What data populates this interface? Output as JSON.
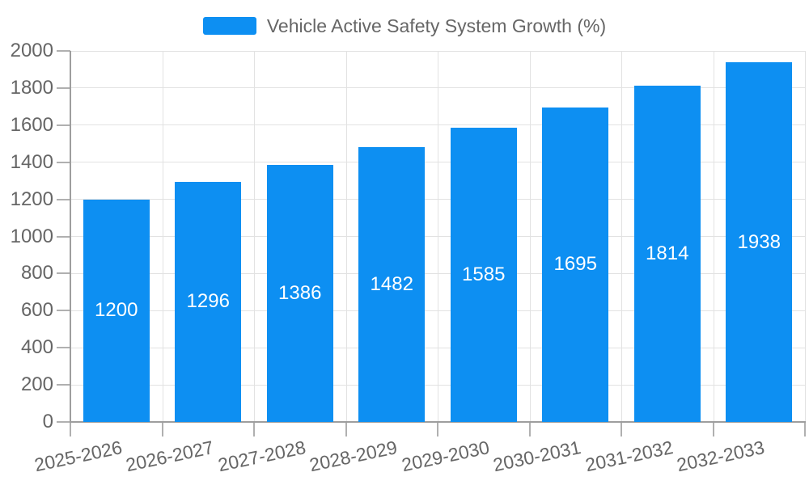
{
  "legend": {
    "label": "Vehicle Active Safety System Growth (%)"
  },
  "chart_data": {
    "type": "bar",
    "title": "Vehicle Active Safety System Growth (%)",
    "categories": [
      "2025-2026",
      "2026-2027",
      "2027-2028",
      "2028-2029",
      "2029-2030",
      "2030-2031",
      "2031-2032",
      "2032-2033"
    ],
    "series": [
      {
        "name": "Vehicle Active Safety System Growth (%)",
        "values": [
          1200,
          1296,
          1386,
          1482,
          1585,
          1695,
          1814,
          1938
        ]
      }
    ],
    "xlabel": "",
    "ylabel": "",
    "ylim": [
      0,
      2000
    ],
    "yticks": [
      0,
      200,
      400,
      600,
      800,
      1000,
      1200,
      1400,
      1600,
      1800,
      2000
    ],
    "grid": true,
    "legend_position": "top-center",
    "bar_label_position": "inside-center",
    "x_label_rotation_deg": -12,
    "colors": {
      "bar": "#0d8ff2",
      "value_label": "#ffffff",
      "axis_text": "#666666",
      "grid": "#e2e2e2",
      "axis_line": "#9e9e9e",
      "tick": "#b0b0b0"
    }
  }
}
